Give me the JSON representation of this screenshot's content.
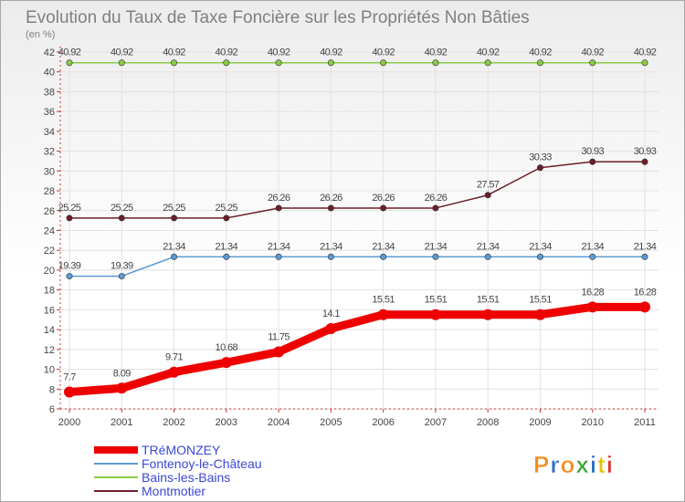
{
  "chart_data": {
    "type": "line",
    "title": "Evolution du Taux de Taxe Foncière sur les Propriétés Non Bâties",
    "subtitle": "(en %)",
    "xlabel": "",
    "ylabel": "",
    "x": [
      "2000",
      "2001",
      "2002",
      "2003",
      "2004",
      "2005",
      "2006",
      "2007",
      "2008",
      "2009",
      "2010",
      "2011"
    ],
    "ylim": [
      6,
      42
    ],
    "yticks": [
      "6",
      "8",
      "10",
      "12",
      "14",
      "16",
      "18",
      "20",
      "22",
      "24",
      "26",
      "28",
      "30",
      "32",
      "34",
      "36",
      "38",
      "40",
      "42"
    ],
    "grid": true,
    "legend_position": "bottom-left",
    "series": [
      {
        "name": "Bains-les-Bains",
        "color": "#88cc44",
        "values": [
          40.92,
          40.92,
          40.92,
          40.92,
          40.92,
          40.92,
          40.92,
          40.92,
          40.92,
          40.92,
          40.92,
          40.92
        ],
        "labels": [
          "40.92",
          "40.92",
          "40.92",
          "40.92",
          "40.92",
          "40.92",
          "40.92",
          "40.92",
          "40.92",
          "40.92",
          "40.92",
          "40.92"
        ]
      },
      {
        "name": "Montmotier",
        "color": "#6b1f28",
        "values": [
          25.25,
          25.25,
          25.25,
          25.25,
          26.26,
          26.26,
          26.26,
          26.26,
          27.57,
          30.33,
          30.93,
          30.93
        ],
        "labels": [
          "25.25",
          "25.25",
          "25.25",
          "25.25",
          "26.26",
          "26.26",
          "26.26",
          "26.26",
          "27.57",
          "30.33",
          "30.93",
          "30.93"
        ]
      },
      {
        "name": "Fontenoy-le-Château",
        "color": "#5b9bd5",
        "values": [
          19.39,
          19.39,
          21.34,
          21.34,
          21.34,
          21.34,
          21.34,
          21.34,
          21.34,
          21.34,
          21.34,
          21.34
        ],
        "labels": [
          "19.39",
          "19.39",
          "21.34",
          "21.34",
          "21.34",
          "21.34",
          "21.34",
          "21.34",
          "21.34",
          "21.34",
          "21.34",
          "21.34"
        ]
      },
      {
        "name": "TRéMONZEY",
        "color": "#ee0000",
        "values": [
          7.7,
          8.09,
          9.71,
          10.68,
          11.75,
          14.1,
          15.51,
          15.51,
          15.51,
          15.51,
          16.28,
          16.28
        ],
        "labels": [
          "7.7",
          "8.09",
          "9.71",
          "10.68",
          "11.75",
          "14.1",
          "15.51",
          "15.51",
          "15.51",
          "15.51",
          "16.28",
          "16.28"
        ]
      }
    ],
    "legend": [
      "TRéMONZEY",
      "Fontenoy-le-Château",
      "Bains-les-Bains",
      "Montmotier"
    ]
  },
  "logo": {
    "text": "Proxiti",
    "colors": [
      "#f28c1e",
      "#2f6fbf",
      "#f28c1e",
      "#39a537",
      "#2f6fbf",
      "#e8c100",
      "#d9352a"
    ]
  }
}
